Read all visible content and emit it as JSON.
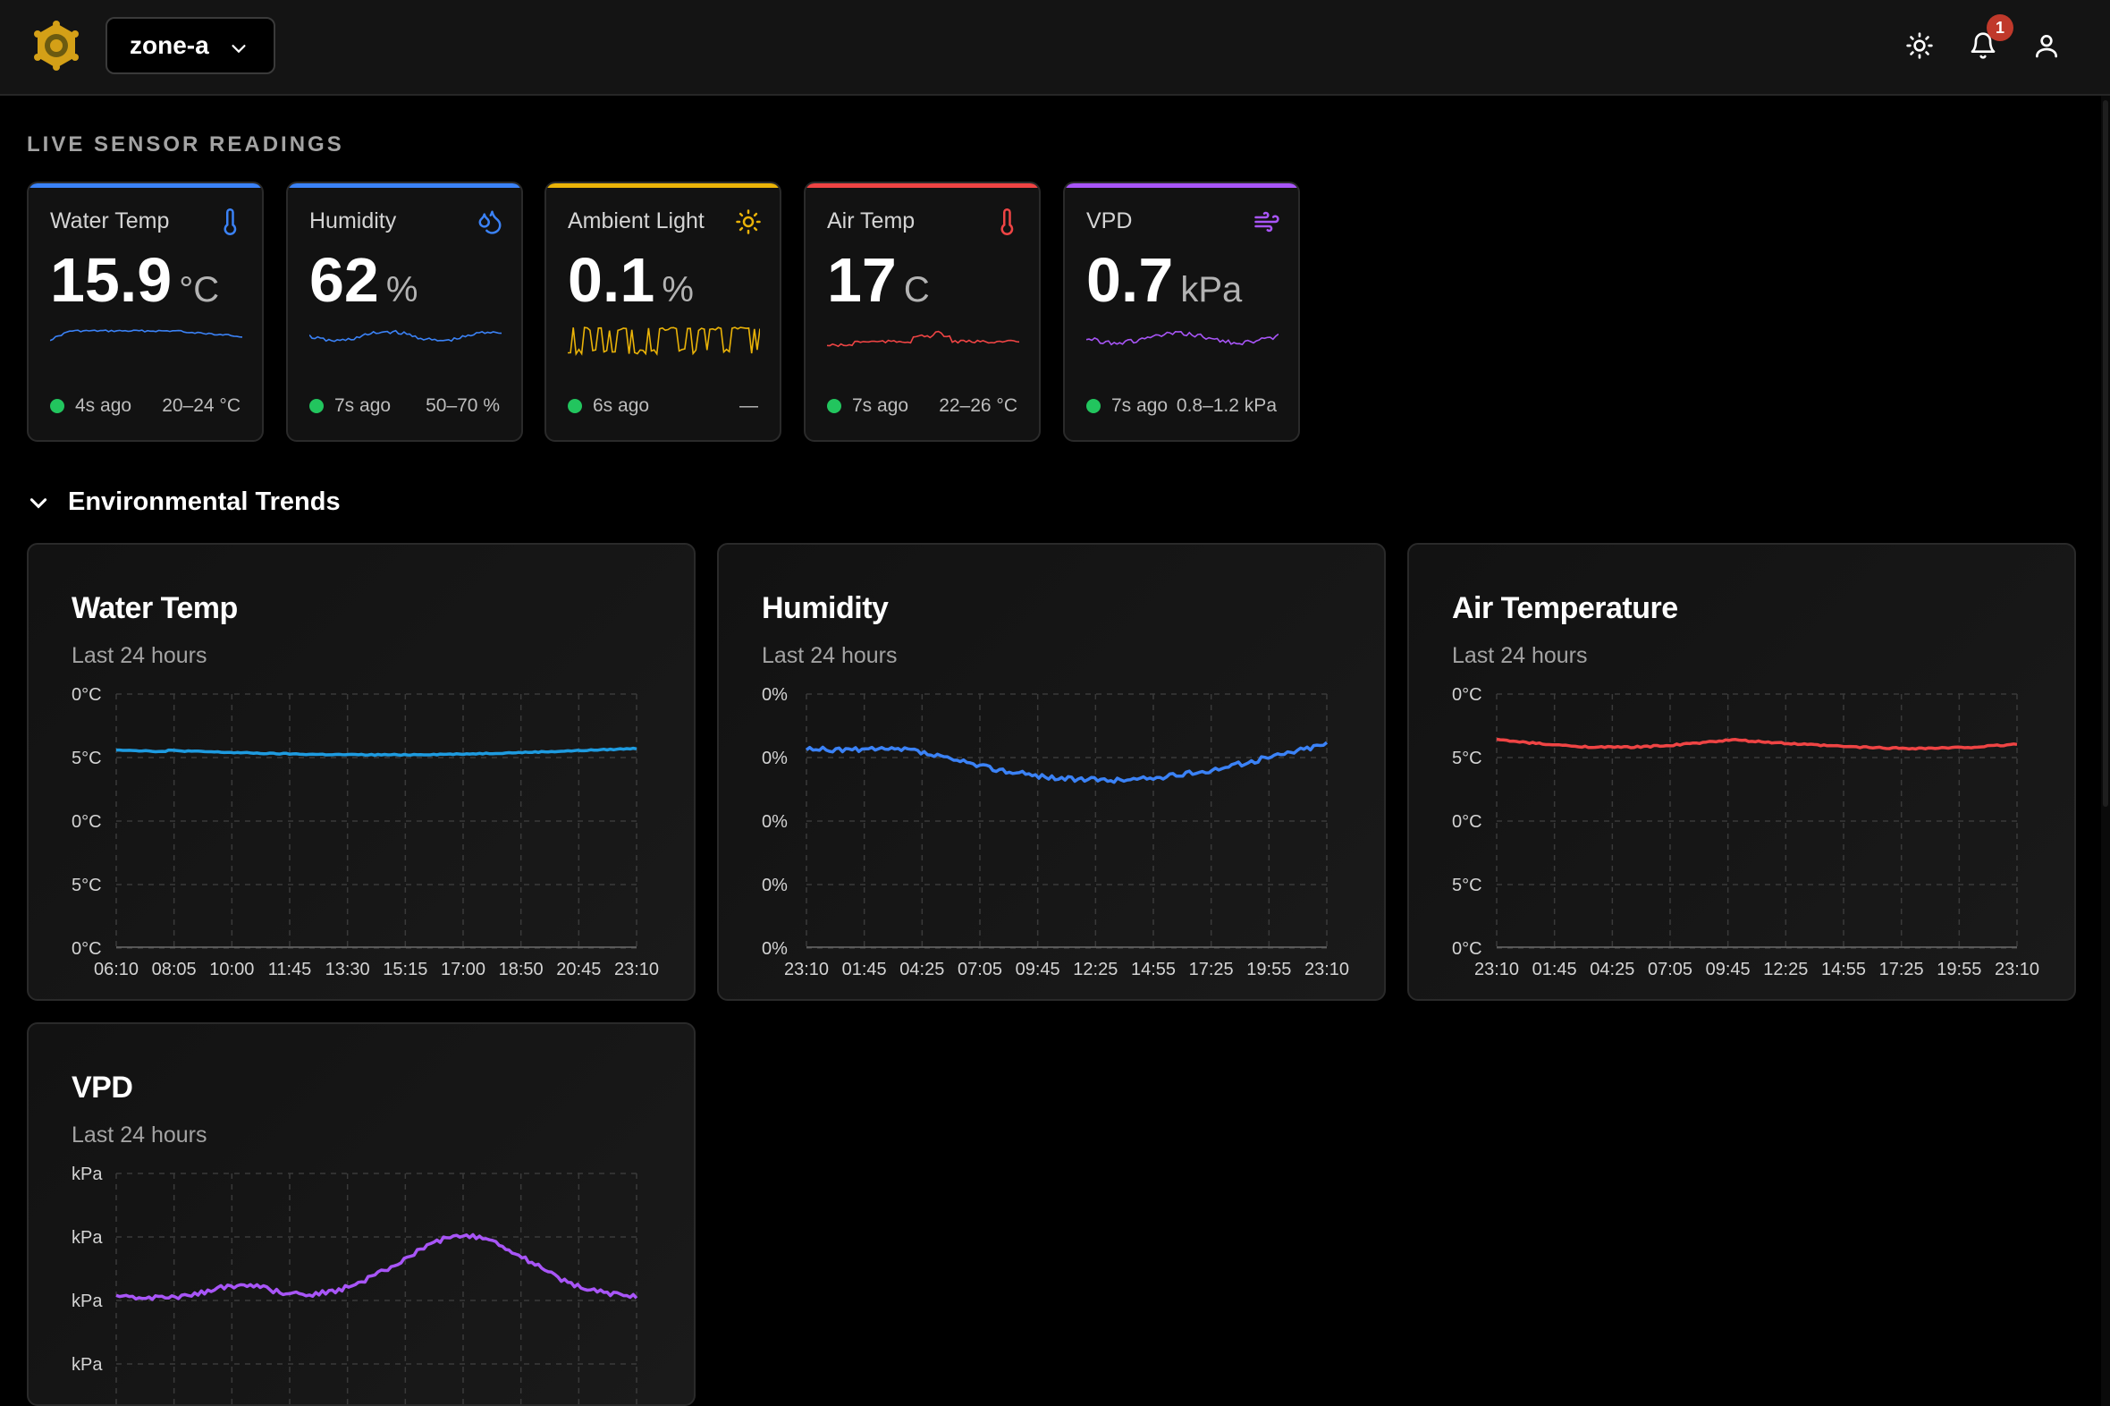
{
  "header": {
    "zone_selected": "zone-a",
    "notification_count": "1"
  },
  "sensors_section": {
    "label": "LIVE SENSOR READINGS"
  },
  "sensors": [
    {
      "title": "Water Temp",
      "value": "15.9",
      "unit": "°C",
      "updated": "4s ago",
      "range": "20–24 °C",
      "color": "#3b82f6",
      "icon": "thermometer-icon"
    },
    {
      "title": "Humidity",
      "value": "62",
      "unit": "%",
      "updated": "7s ago",
      "range": "50–70 %",
      "color": "#3b82f6",
      "icon": "droplets-icon"
    },
    {
      "title": "Ambient Light",
      "value": "0.1",
      "unit": "%",
      "updated": "6s ago",
      "range": "—",
      "color": "#eab308",
      "icon": "sun-icon"
    },
    {
      "title": "Air Temp",
      "value": "17",
      "unit": "C",
      "updated": "7s ago",
      "range": "22–26 °C",
      "color": "#ef4444",
      "icon": "thermometer-icon"
    },
    {
      "title": "VPD",
      "value": "0.7",
      "unit": "kPa",
      "updated": "7s ago",
      "range": "0.8–1.2 kPa",
      "color": "#a855f7",
      "icon": "wind-icon"
    }
  ],
  "trends": {
    "heading": "Environmental Trends",
    "charts": [
      {
        "title": "Water Temp",
        "subtitle": "Last 24 hours",
        "color": "#1e9be0",
        "y_labels": [
          "0°C",
          "5°C",
          "0°C",
          "5°C",
          "0°C"
        ],
        "x_labels": [
          "06:10",
          "08:05",
          "10:00",
          "11:45",
          "13:30",
          "15:15",
          "17:00",
          "18:50",
          "20:45",
          "23:10"
        ]
      },
      {
        "title": "Humidity",
        "subtitle": "Last 24 hours",
        "color": "#3b82f6",
        "y_labels": [
          "0%",
          "0%",
          "0%",
          "0%",
          "0%"
        ],
        "x_labels": [
          "23:10",
          "01:45",
          "04:25",
          "07:05",
          "09:45",
          "12:25",
          "14:55",
          "17:25",
          "19:55",
          "23:10"
        ]
      },
      {
        "title": "Air Temperature",
        "subtitle": "Last 24 hours",
        "color": "#ef4444",
        "y_labels": [
          "0°C",
          "5°C",
          "0°C",
          "5°C",
          "0°C"
        ],
        "x_labels": [
          "23:10",
          "01:45",
          "04:25",
          "07:05",
          "09:45",
          "12:25",
          "14:55",
          "17:25",
          "19:55",
          "23:10"
        ]
      },
      {
        "title": "VPD",
        "subtitle": "Last 24 hours",
        "color": "#a855f7",
        "y_labels": [
          "kPa",
          "kPa",
          "kPa",
          "kPa"
        ],
        "x_labels": []
      }
    ]
  }
}
